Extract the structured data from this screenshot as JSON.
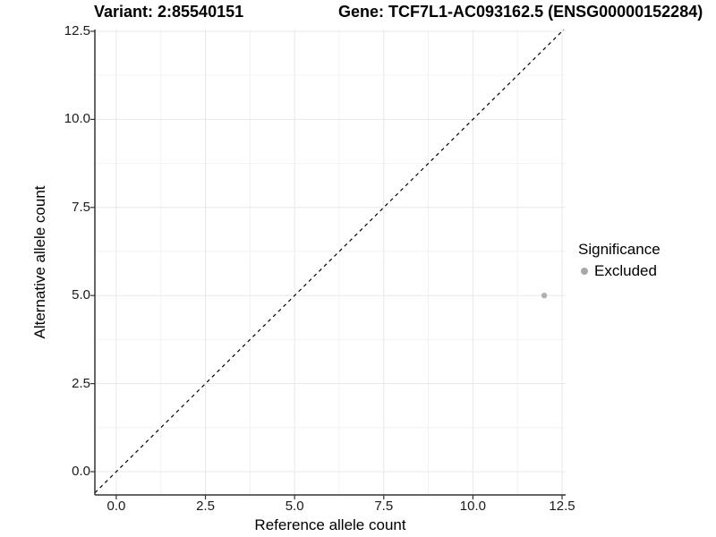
{
  "header": {
    "variant_title": "Variant: 2:85540151",
    "gene_title": "Gene: TCF7L1-AC093162.5 (ENSG00000152284)"
  },
  "chart_data": {
    "type": "scatter",
    "title_left": "Variant: 2:85540151",
    "title_right": "Gene: TCF7L1-AC093162.5 (ENSG00000152284)",
    "xlabel": "Reference allele count",
    "ylabel": "Alternative allele count",
    "x_tick_values": [
      0,
      2.5,
      5,
      7.5,
      10,
      12.5
    ],
    "x_tick_labels": [
      "0.0",
      "2.5",
      "5.0",
      "7.5",
      "10.0",
      "12.5"
    ],
    "y_tick_values": [
      0,
      2.5,
      5,
      7.5,
      10,
      12.5
    ],
    "y_tick_labels": [
      "0.0",
      "2.5",
      "5.0",
      "7.5",
      "10.0",
      "12.5"
    ],
    "xlim": [
      -0.6,
      12.6
    ],
    "ylim": [
      -0.66,
      12.55
    ],
    "grid": {
      "major": true,
      "minor": true
    },
    "identity_line": {
      "slope": 1,
      "intercept": 0,
      "style": "dashed",
      "color": "#000000"
    },
    "series": [
      {
        "name": "Excluded",
        "color": "#b0b0b0",
        "points": [
          {
            "x": 12,
            "y": 5
          }
        ]
      }
    ],
    "legend": {
      "title": "Significance",
      "position": "right",
      "entries": [
        {
          "label": "Excluded",
          "color": "#a8a8a8"
        }
      ]
    },
    "colors": {
      "grid_major": "#e8e8e8",
      "grid_minor": "#f2f2f2",
      "axis_line": "#333333",
      "tick_mark": "#333333"
    }
  }
}
